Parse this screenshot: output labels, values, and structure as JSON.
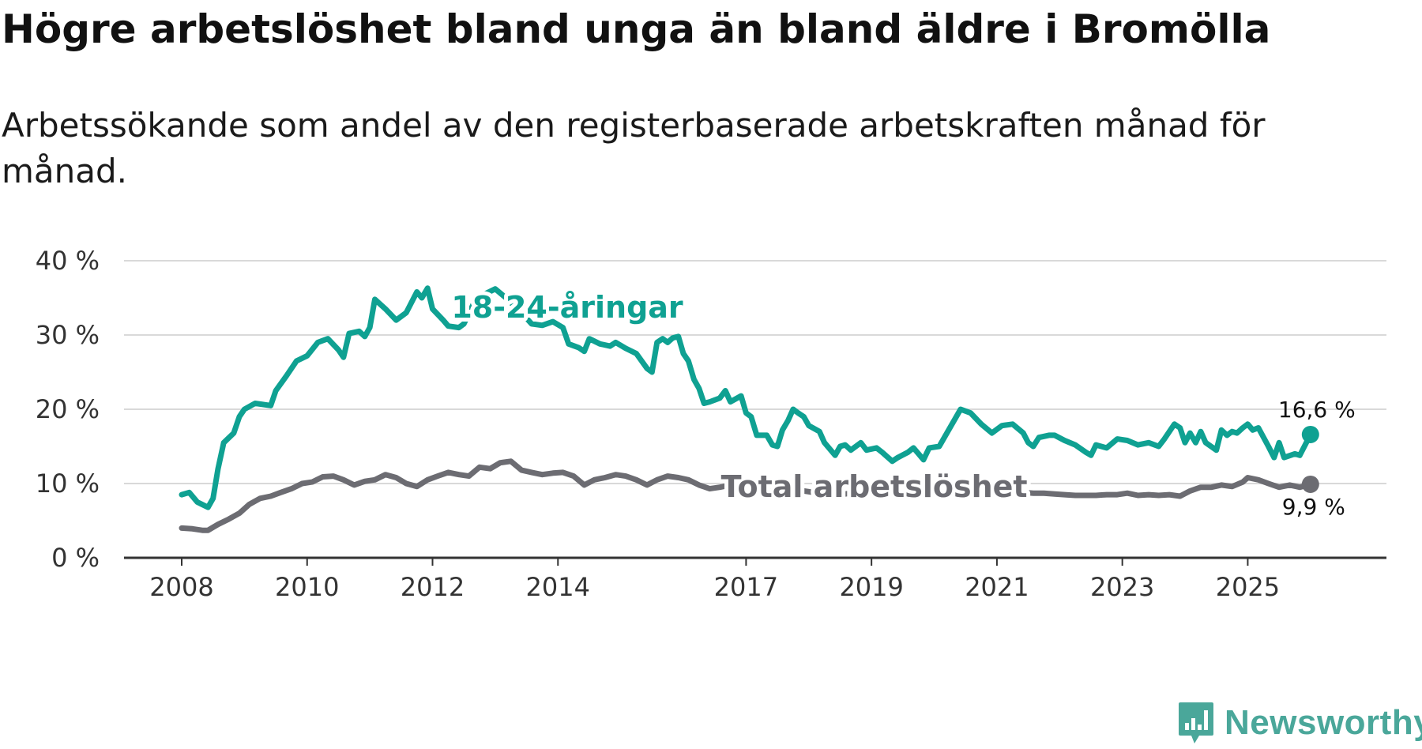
{
  "header": {
    "title": "Högre arbetslöshet bland unga än bland äldre i Bromölla",
    "subtitle": "Arbetssökande som andel av den registerbaserade arbetskraften månad för månad."
  },
  "brand": {
    "name": "Newsworthy",
    "icon": "bar-chart-speech-bubble-icon",
    "color": "#4aa79a"
  },
  "chart_data": {
    "type": "line",
    "title": "Högre arbetslöshet bland unga än bland äldre i Bromölla",
    "subtitle": "Arbetssökande som andel av den registerbaserade arbetskraften månad för månad.",
    "xlabel": "",
    "ylabel": "",
    "x_range": [
      2008.0,
      2026.33
    ],
    "ylim": [
      0,
      40
    ],
    "grid": true,
    "y_ticks": [
      {
        "value": 0,
        "label": "0 %"
      },
      {
        "value": 10,
        "label": "10 %"
      },
      {
        "value": 20,
        "label": "20 %"
      },
      {
        "value": 30,
        "label": "30 %"
      },
      {
        "value": 40,
        "label": "40 %"
      }
    ],
    "x_ticks": [
      {
        "value": 2008,
        "label": "2008"
      },
      {
        "value": 2010,
        "label": "2010"
      },
      {
        "value": 2012,
        "label": "2012"
      },
      {
        "value": 2014,
        "label": "2014"
      },
      {
        "value": 2017,
        "label": "2017"
      },
      {
        "value": 2019,
        "label": "2019"
      },
      {
        "value": 2021,
        "label": "2021"
      },
      {
        "value": 2023,
        "label": "2023"
      },
      {
        "value": 2025,
        "label": "2025"
      }
    ],
    "series": [
      {
        "name": "18-24-åringar",
        "color": "#0fa192",
        "end_label": "16,6 %",
        "label_at": [
          2012.3,
          33.7
        ],
        "points": [
          [
            2008.0,
            8.5
          ],
          [
            2008.12,
            8.8
          ],
          [
            2008.25,
            7.5
          ],
          [
            2008.42,
            6.8
          ],
          [
            2008.5,
            8.0
          ],
          [
            2008.58,
            12.0
          ],
          [
            2008.67,
            15.5
          ],
          [
            2008.83,
            16.8
          ],
          [
            2008.92,
            19.0
          ],
          [
            2009.0,
            20.0
          ],
          [
            2009.17,
            20.8
          ],
          [
            2009.42,
            20.5
          ],
          [
            2009.5,
            22.5
          ],
          [
            2009.67,
            24.5
          ],
          [
            2009.83,
            26.5
          ],
          [
            2010.0,
            27.2
          ],
          [
            2010.17,
            29.0
          ],
          [
            2010.33,
            29.5
          ],
          [
            2010.5,
            28.0
          ],
          [
            2010.58,
            27.0
          ],
          [
            2010.67,
            30.2
          ],
          [
            2010.83,
            30.5
          ],
          [
            2010.92,
            29.8
          ],
          [
            2011.0,
            31.0
          ],
          [
            2011.08,
            34.8
          ],
          [
            2011.25,
            33.5
          ],
          [
            2011.42,
            32.0
          ],
          [
            2011.58,
            33.0
          ],
          [
            2011.75,
            35.8
          ],
          [
            2011.83,
            35.0
          ],
          [
            2011.92,
            36.3
          ],
          [
            2012.0,
            33.5
          ],
          [
            2012.17,
            32.0
          ],
          [
            2012.25,
            31.2
          ],
          [
            2012.42,
            31.0
          ],
          [
            2012.5,
            31.5
          ],
          [
            2012.67,
            34.5
          ],
          [
            2012.83,
            35.5
          ],
          [
            2013.0,
            36.2
          ],
          [
            2013.17,
            35.0
          ],
          [
            2013.42,
            33.0
          ],
          [
            2013.58,
            31.5
          ],
          [
            2013.75,
            31.3
          ],
          [
            2013.92,
            31.8
          ],
          [
            2014.08,
            31.0
          ],
          [
            2014.17,
            28.8
          ],
          [
            2014.33,
            28.3
          ],
          [
            2014.42,
            27.8
          ],
          [
            2014.5,
            29.5
          ],
          [
            2014.67,
            28.8
          ],
          [
            2014.83,
            28.5
          ],
          [
            2014.92,
            29.0
          ],
          [
            2015.08,
            28.2
          ],
          [
            2015.25,
            27.5
          ],
          [
            2015.42,
            25.5
          ],
          [
            2015.5,
            25.0
          ],
          [
            2015.58,
            29.0
          ],
          [
            2015.67,
            29.5
          ],
          [
            2015.75,
            29.0
          ],
          [
            2015.83,
            29.6
          ],
          [
            2015.92,
            29.8
          ],
          [
            2016.0,
            27.5
          ],
          [
            2016.08,
            26.5
          ],
          [
            2016.17,
            24.0
          ],
          [
            2016.25,
            22.8
          ],
          [
            2016.33,
            20.8
          ],
          [
            2016.42,
            21.0
          ],
          [
            2016.58,
            21.5
          ],
          [
            2016.67,
            22.5
          ],
          [
            2016.75,
            21.0
          ],
          [
            2016.92,
            21.8
          ],
          [
            2017.0,
            19.5
          ],
          [
            2017.08,
            19.0
          ],
          [
            2017.17,
            16.5
          ],
          [
            2017.33,
            16.5
          ],
          [
            2017.42,
            15.2
          ],
          [
            2017.5,
            15.0
          ],
          [
            2017.58,
            17.2
          ],
          [
            2017.67,
            18.5
          ],
          [
            2017.75,
            20.0
          ],
          [
            2017.83,
            19.5
          ],
          [
            2017.92,
            19.0
          ],
          [
            2018.0,
            17.8
          ],
          [
            2018.17,
            17.0
          ],
          [
            2018.25,
            15.5
          ],
          [
            2018.42,
            13.8
          ],
          [
            2018.5,
            15.0
          ],
          [
            2018.58,
            15.2
          ],
          [
            2018.67,
            14.5
          ],
          [
            2018.83,
            15.5
          ],
          [
            2018.92,
            14.5
          ],
          [
            2019.08,
            14.8
          ],
          [
            2019.17,
            14.2
          ],
          [
            2019.33,
            13.0
          ],
          [
            2019.42,
            13.5
          ],
          [
            2019.58,
            14.2
          ],
          [
            2019.67,
            14.8
          ],
          [
            2019.75,
            14.0
          ],
          [
            2019.83,
            13.2
          ],
          [
            2019.92,
            14.8
          ],
          [
            2020.08,
            15.0
          ],
          [
            2020.25,
            17.5
          ],
          [
            2020.42,
            20.0
          ],
          [
            2020.58,
            19.5
          ],
          [
            2020.75,
            18.0
          ],
          [
            2020.92,
            16.8
          ],
          [
            2021.08,
            17.8
          ],
          [
            2021.25,
            18.0
          ],
          [
            2021.42,
            16.8
          ],
          [
            2021.5,
            15.5
          ],
          [
            2021.58,
            15.0
          ],
          [
            2021.67,
            16.2
          ],
          [
            2021.83,
            16.5
          ],
          [
            2021.92,
            16.5
          ],
          [
            2022.08,
            15.8
          ],
          [
            2022.25,
            15.2
          ],
          [
            2022.42,
            14.2
          ],
          [
            2022.5,
            13.8
          ],
          [
            2022.58,
            15.2
          ],
          [
            2022.75,
            14.8
          ],
          [
            2022.92,
            16.0
          ],
          [
            2023.08,
            15.8
          ],
          [
            2023.25,
            15.2
          ],
          [
            2023.42,
            15.5
          ],
          [
            2023.58,
            15.0
          ],
          [
            2023.67,
            16.0
          ],
          [
            2023.83,
            18.0
          ],
          [
            2023.92,
            17.5
          ],
          [
            2024.0,
            15.5
          ],
          [
            2024.08,
            16.8
          ],
          [
            2024.17,
            15.5
          ],
          [
            2024.25,
            17.0
          ],
          [
            2024.33,
            15.5
          ],
          [
            2024.5,
            14.5
          ],
          [
            2024.58,
            17.2
          ],
          [
            2024.67,
            16.5
          ],
          [
            2024.75,
            17.0
          ],
          [
            2024.83,
            16.8
          ],
          [
            2024.92,
            17.5
          ],
          [
            2025.0,
            18.0
          ],
          [
            2025.08,
            17.2
          ],
          [
            2025.17,
            17.5
          ],
          [
            2025.33,
            15.0
          ],
          [
            2025.42,
            13.5
          ],
          [
            2025.5,
            15.5
          ],
          [
            2025.58,
            13.5
          ],
          [
            2025.75,
            14.0
          ],
          [
            2025.83,
            13.8
          ],
          [
            2026.0,
            16.6
          ]
        ]
      },
      {
        "name": "Total arbetslöshet",
        "color": "#6c6c72",
        "end_label": "9,9 %",
        "label_at": [
          2016.6,
          9.6
        ],
        "points": [
          [
            2008.0,
            4.0
          ],
          [
            2008.17,
            3.9
          ],
          [
            2008.33,
            3.7
          ],
          [
            2008.42,
            3.7
          ],
          [
            2008.58,
            4.5
          ],
          [
            2008.75,
            5.2
          ],
          [
            2008.92,
            6.0
          ],
          [
            2009.08,
            7.2
          ],
          [
            2009.25,
            8.0
          ],
          [
            2009.42,
            8.3
          ],
          [
            2009.58,
            8.8
          ],
          [
            2009.75,
            9.3
          ],
          [
            2009.92,
            10.0
          ],
          [
            2010.08,
            10.2
          ],
          [
            2010.25,
            10.9
          ],
          [
            2010.42,
            11.0
          ],
          [
            2010.58,
            10.5
          ],
          [
            2010.75,
            9.8
          ],
          [
            2010.92,
            10.3
          ],
          [
            2011.08,
            10.5
          ],
          [
            2011.25,
            11.2
          ],
          [
            2011.42,
            10.8
          ],
          [
            2011.58,
            10.0
          ],
          [
            2011.75,
            9.6
          ],
          [
            2011.92,
            10.5
          ],
          [
            2012.08,
            11.0
          ],
          [
            2012.25,
            11.5
          ],
          [
            2012.42,
            11.2
          ],
          [
            2012.58,
            11.0
          ],
          [
            2012.75,
            12.2
          ],
          [
            2012.92,
            12.0
          ],
          [
            2013.08,
            12.8
          ],
          [
            2013.25,
            13.0
          ],
          [
            2013.42,
            11.8
          ],
          [
            2013.58,
            11.5
          ],
          [
            2013.75,
            11.2
          ],
          [
            2013.92,
            11.4
          ],
          [
            2014.08,
            11.5
          ],
          [
            2014.25,
            11.0
          ],
          [
            2014.42,
            9.8
          ],
          [
            2014.58,
            10.5
          ],
          [
            2014.75,
            10.8
          ],
          [
            2014.92,
            11.2
          ],
          [
            2015.08,
            11.0
          ],
          [
            2015.25,
            10.5
          ],
          [
            2015.42,
            9.8
          ],
          [
            2015.58,
            10.5
          ],
          [
            2015.75,
            11.0
          ],
          [
            2015.92,
            10.8
          ],
          [
            2016.08,
            10.5
          ],
          [
            2016.25,
            9.8
          ],
          [
            2016.42,
            9.3
          ],
          [
            2016.58,
            9.5
          ],
          [
            2016.75,
            9.8
          ],
          [
            2016.92,
            10.0
          ],
          [
            2017.08,
            10.0
          ],
          [
            2017.25,
            9.5
          ],
          [
            2017.42,
            8.8
          ],
          [
            2017.58,
            9.0
          ],
          [
            2017.75,
            9.2
          ],
          [
            2017.92,
            9.0
          ],
          [
            2018.08,
            8.8
          ],
          [
            2018.25,
            8.6
          ],
          [
            2018.42,
            8.5
          ],
          [
            2018.58,
            8.6
          ],
          [
            2018.75,
            8.8
          ],
          [
            2018.92,
            8.7
          ],
          [
            2019.08,
            8.9
          ],
          [
            2019.25,
            9.0
          ],
          [
            2019.42,
            8.6
          ],
          [
            2019.58,
            8.7
          ],
          [
            2019.75,
            8.8
          ],
          [
            2019.92,
            9.0
          ],
          [
            2020.08,
            9.2
          ],
          [
            2020.25,
            9.5
          ],
          [
            2020.42,
            9.6
          ],
          [
            2020.58,
            9.5
          ],
          [
            2020.75,
            9.4
          ],
          [
            2020.92,
            9.3
          ],
          [
            2021.08,
            9.2
          ],
          [
            2021.25,
            9.0
          ],
          [
            2021.42,
            8.8
          ],
          [
            2021.58,
            8.7
          ],
          [
            2021.75,
            8.7
          ],
          [
            2021.92,
            8.6
          ],
          [
            2022.08,
            8.5
          ],
          [
            2022.25,
            8.4
          ],
          [
            2022.42,
            8.4
          ],
          [
            2022.58,
            8.4
          ],
          [
            2022.75,
            8.5
          ],
          [
            2022.92,
            8.5
          ],
          [
            2023.08,
            8.7
          ],
          [
            2023.25,
            8.4
          ],
          [
            2023.42,
            8.5
          ],
          [
            2023.58,
            8.4
          ],
          [
            2023.75,
            8.5
          ],
          [
            2023.92,
            8.3
          ],
          [
            2024.08,
            9.0
          ],
          [
            2024.25,
            9.5
          ],
          [
            2024.42,
            9.5
          ],
          [
            2024.58,
            9.8
          ],
          [
            2024.75,
            9.6
          ],
          [
            2024.92,
            10.2
          ],
          [
            2025.0,
            10.8
          ],
          [
            2025.17,
            10.5
          ],
          [
            2025.33,
            10.0
          ],
          [
            2025.5,
            9.5
          ],
          [
            2025.67,
            9.8
          ],
          [
            2025.83,
            9.5
          ],
          [
            2026.0,
            9.9
          ]
        ]
      }
    ]
  }
}
